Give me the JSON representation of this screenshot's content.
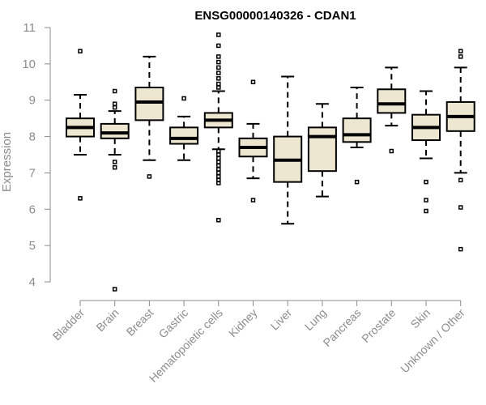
{
  "chart_data": {
    "type": "box",
    "title": "ENSG00000140326 - CDAN1",
    "xlabel": "",
    "ylabel": "Expression",
    "ylim": [
      4,
      11
    ],
    "yticks": [
      "4",
      "5",
      "6",
      "7",
      "8",
      "9",
      "10",
      "11"
    ],
    "grid": false,
    "colors": {
      "box_fill": "#ede6d0",
      "stroke": "#000000",
      "axis": "#8c8c8c"
    },
    "categories": [
      "Bladder",
      "Brain",
      "Breast",
      "Gastric",
      "Hematopoietic cells",
      "Kidney",
      "Liver",
      "Lung",
      "Pancreas",
      "Prostate",
      "Skin",
      "Unknown / Other"
    ],
    "boxes": [
      {
        "category": "Bladder",
        "whisker_low": 7.5,
        "q1": 8.0,
        "median": 8.25,
        "q3": 8.5,
        "whisker_high": 9.15,
        "outliers": [
          10.35,
          6.3
        ]
      },
      {
        "category": "Brain",
        "whisker_low": 7.5,
        "q1": 7.95,
        "median": 8.1,
        "q3": 8.35,
        "whisker_high": 8.7,
        "outliers": [
          9.25,
          8.9,
          8.8,
          7.3,
          7.15,
          3.8
        ]
      },
      {
        "category": "Breast",
        "whisker_low": 7.35,
        "q1": 8.45,
        "median": 8.95,
        "q3": 9.35,
        "whisker_high": 10.2,
        "outliers": [
          6.9
        ]
      },
      {
        "category": "Gastric",
        "whisker_low": 7.35,
        "q1": 7.8,
        "median": 7.95,
        "q3": 8.25,
        "whisker_high": 8.55,
        "outliers": [
          9.05
        ]
      },
      {
        "category": "Hematopoietic cells",
        "whisker_low": 7.65,
        "q1": 8.25,
        "median": 8.45,
        "q3": 8.65,
        "whisker_high": 9.25,
        "outliers": [
          10.8,
          10.5,
          10.2,
          10.05,
          9.9,
          9.75,
          9.6,
          9.45,
          9.35,
          7.6,
          7.5,
          7.4,
          7.3,
          7.2,
          7.1,
          7.0,
          6.9,
          6.8,
          6.72,
          5.7
        ]
      },
      {
        "category": "Kidney",
        "whisker_low": 6.85,
        "q1": 7.45,
        "median": 7.7,
        "q3": 7.95,
        "whisker_high": 8.35,
        "outliers": [
          9.5,
          6.25
        ]
      },
      {
        "category": "Liver",
        "whisker_low": 5.6,
        "q1": 6.75,
        "median": 7.35,
        "q3": 8.0,
        "whisker_high": 9.65,
        "outliers": []
      },
      {
        "category": "Lung",
        "whisker_low": 6.35,
        "q1": 7.05,
        "median": 8.0,
        "q3": 8.25,
        "whisker_high": 8.9,
        "outliers": []
      },
      {
        "category": "Pancreas",
        "whisker_low": 7.7,
        "q1": 7.85,
        "median": 8.05,
        "q3": 8.5,
        "whisker_high": 9.35,
        "outliers": [
          6.75
        ]
      },
      {
        "category": "Prostate",
        "whisker_low": 8.3,
        "q1": 8.65,
        "median": 8.9,
        "q3": 9.3,
        "whisker_high": 9.9,
        "outliers": [
          7.6
        ]
      },
      {
        "category": "Skin",
        "whisker_low": 7.4,
        "q1": 7.9,
        "median": 8.25,
        "q3": 8.6,
        "whisker_high": 9.25,
        "outliers": [
          6.75,
          6.25,
          5.95
        ]
      },
      {
        "category": "Unknown / Other",
        "whisker_low": 7.0,
        "q1": 8.15,
        "median": 8.55,
        "q3": 8.95,
        "whisker_high": 9.9,
        "outliers": [
          10.35,
          10.2,
          6.8,
          6.05,
          4.9
        ]
      }
    ]
  }
}
